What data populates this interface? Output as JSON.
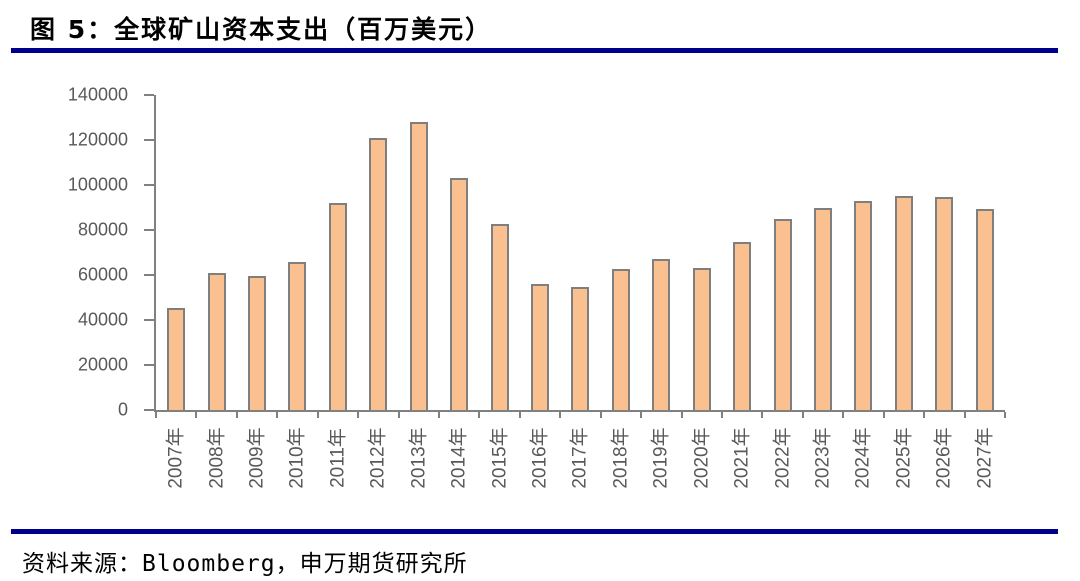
{
  "header": {
    "title": "图 5：全球矿山资本支出（百万美元）"
  },
  "footer": {
    "source": "资料来源：Bloomberg，申万期货研究所"
  },
  "colors": {
    "rule": "#00008B",
    "bar_fill": "#FAC090",
    "bar_border": "#7F7F7F",
    "axis": "#808080",
    "tick_label": "#595959",
    "title_text": "#000000"
  },
  "chart_data": {
    "type": "bar",
    "title": "全球矿山资本支出（百万美元）",
    "categories": [
      "2007年",
      "2008年",
      "2009年",
      "2010年",
      "2011年",
      "2012年",
      "2013年",
      "2014年",
      "2015年",
      "2016年",
      "2017年",
      "2018年",
      "2019年",
      "2020年",
      "2021年",
      "2022年",
      "2023年",
      "2024年",
      "2025年",
      "2026年",
      "2027年"
    ],
    "values": [
      45500,
      61000,
      59500,
      66000,
      92000,
      121000,
      128000,
      103000,
      82500,
      56000,
      54500,
      62500,
      67000,
      63000,
      74500,
      85000,
      90000,
      93000,
      95000,
      94500,
      89500
    ],
    "xlabel": "",
    "ylabel": "",
    "ylim": [
      0,
      140000
    ],
    "yticks": [
      0,
      20000,
      40000,
      60000,
      80000,
      100000,
      120000,
      140000
    ],
    "grid": false,
    "legend_position": "none"
  }
}
